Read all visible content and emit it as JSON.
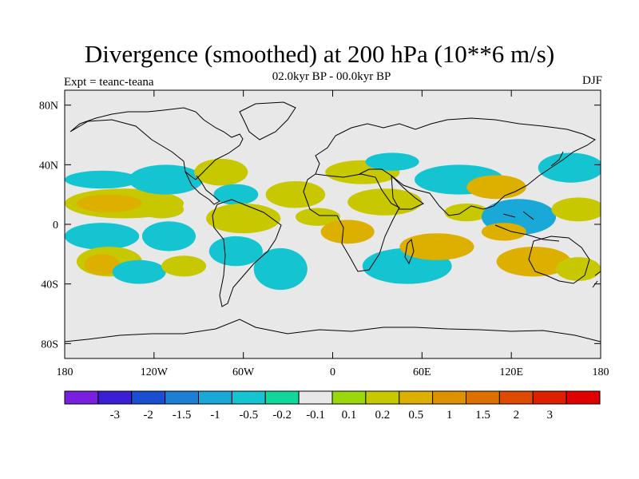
{
  "title": "Divergence (smoothed) at 200 hPa (10**6 m/s)",
  "subtitle": "02.0kyr BP - 00.0kyr BP",
  "experiment": "Expt = teanc-teana",
  "season": "DJF",
  "map": {
    "projection": "cylindrical-equidistant",
    "lon_range": [
      -180,
      180
    ],
    "lat_range": [
      -90,
      90
    ],
    "background_color": "#e8e8e8",
    "x_ticks": [
      {
        "lon": -180,
        "label": "180"
      },
      {
        "lon": -120,
        "label": "120W"
      },
      {
        "lon": -60,
        "label": "60W"
      },
      {
        "lon": 0,
        "label": "0"
      },
      {
        "lon": 60,
        "label": "60E"
      },
      {
        "lon": 120,
        "label": "120E"
      },
      {
        "lon": 180,
        "label": "180"
      }
    ],
    "y_ticks": [
      {
        "lat": 80,
        "label": "80N"
      },
      {
        "lat": 40,
        "label": "40N"
      },
      {
        "lat": 0,
        "label": "0"
      },
      {
        "lat": -40,
        "label": "40S"
      },
      {
        "lat": -80,
        "label": "80S"
      }
    ]
  },
  "colorbar": {
    "colors": [
      "#7a1fe0",
      "#3b1fd6",
      "#1a4fcf",
      "#1c7fd4",
      "#1aa8d8",
      "#14c4d0",
      "#10d79a",
      "#e8e8e8",
      "#9ad80c",
      "#c8c800",
      "#ddb000",
      "#dd9200",
      "#dd7000",
      "#dd4a00",
      "#dd2000",
      "#e00000"
    ],
    "labels": [
      "-3",
      "-2",
      "-1.5",
      "-1",
      "-0.5",
      "-0.2",
      "-0.1",
      "0.1",
      "0.2",
      "0.5",
      "1",
      "1.5",
      "2",
      "3"
    ]
  },
  "field_blobs": [
    {
      "lon": -155,
      "lat": 30,
      "rx": 25,
      "ry": 6,
      "level": 5
    },
    {
      "lon": -140,
      "lat": 14,
      "rx": 40,
      "ry": 10,
      "level": 9
    },
    {
      "lon": -150,
      "lat": 14,
      "rx": 22,
      "ry": 6,
      "level": 10
    },
    {
      "lon": -155,
      "lat": -8,
      "rx": 25,
      "ry": 9,
      "level": 5
    },
    {
      "lon": -150,
      "lat": -25,
      "rx": 22,
      "ry": 10,
      "level": 9
    },
    {
      "lon": -155,
      "lat": -27,
      "rx": 12,
      "ry": 7,
      "level": 10
    },
    {
      "lon": -130,
      "lat": -32,
      "rx": 18,
      "ry": 8,
      "level": 5
    },
    {
      "lon": -112,
      "lat": 30,
      "rx": 25,
      "ry": 10,
      "level": 5
    },
    {
      "lon": -115,
      "lat": 10,
      "rx": 15,
      "ry": 6,
      "level": 9
    },
    {
      "lon": -110,
      "lat": -8,
      "rx": 18,
      "ry": 10,
      "level": 5
    },
    {
      "lon": -100,
      "lat": -28,
      "rx": 15,
      "ry": 7,
      "level": 9
    },
    {
      "lon": -75,
      "lat": 35,
      "rx": 18,
      "ry": 9,
      "level": 9
    },
    {
      "lon": -65,
      "lat": 20,
      "rx": 15,
      "ry": 7,
      "level": 5
    },
    {
      "lon": -60,
      "lat": 4,
      "rx": 25,
      "ry": 10,
      "level": 9
    },
    {
      "lon": -65,
      "lat": -18,
      "rx": 18,
      "ry": 10,
      "level": 5
    },
    {
      "lon": -35,
      "lat": -30,
      "rx": 18,
      "ry": 14,
      "level": 5
    },
    {
      "lon": -25,
      "lat": 20,
      "rx": 20,
      "ry": 9,
      "level": 9
    },
    {
      "lon": -10,
      "lat": 5,
      "rx": 15,
      "ry": 6,
      "level": 9
    },
    {
      "lon": 10,
      "lat": -5,
      "rx": 18,
      "ry": 8,
      "level": 10
    },
    {
      "lon": 20,
      "lat": 35,
      "rx": 25,
      "ry": 8,
      "level": 9
    },
    {
      "lon": 40,
      "lat": 42,
      "rx": 18,
      "ry": 6,
      "level": 5
    },
    {
      "lon": 35,
      "lat": 15,
      "rx": 25,
      "ry": 9,
      "level": 9
    },
    {
      "lon": 50,
      "lat": -28,
      "rx": 30,
      "ry": 12,
      "level": 5
    },
    {
      "lon": 70,
      "lat": -15,
      "rx": 25,
      "ry": 9,
      "level": 10
    },
    {
      "lon": 85,
      "lat": 30,
      "rx": 30,
      "ry": 10,
      "level": 5
    },
    {
      "lon": 90,
      "lat": 8,
      "rx": 15,
      "ry": 6,
      "level": 9
    },
    {
      "lon": 110,
      "lat": 25,
      "rx": 20,
      "ry": 8,
      "level": 10
    },
    {
      "lon": 125,
      "lat": 5,
      "rx": 25,
      "ry": 12,
      "level": 4
    },
    {
      "lon": 115,
      "lat": -5,
      "rx": 15,
      "ry": 6,
      "level": 10
    },
    {
      "lon": 135,
      "lat": -25,
      "rx": 25,
      "ry": 10,
      "level": 10
    },
    {
      "lon": 160,
      "lat": 38,
      "rx": 22,
      "ry": 10,
      "level": 5
    },
    {
      "lon": 165,
      "lat": 10,
      "rx": 18,
      "ry": 8,
      "level": 9
    },
    {
      "lon": 165,
      "lat": -30,
      "rx": 15,
      "ry": 8,
      "level": 9
    }
  ]
}
